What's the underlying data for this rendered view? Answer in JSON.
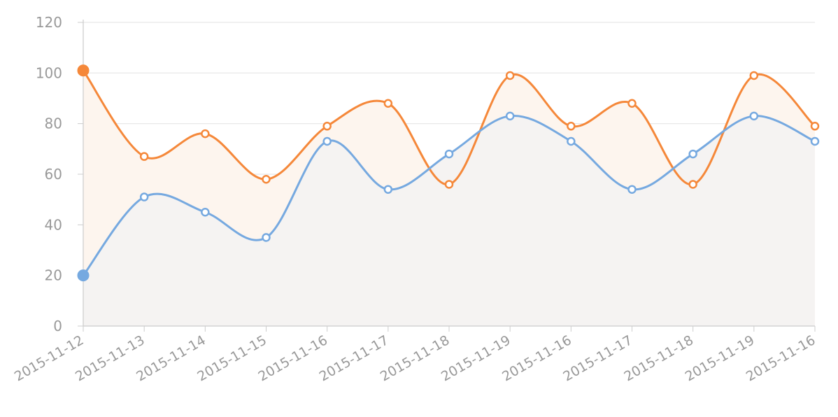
{
  "chart_data": {
    "type": "area",
    "categories": [
      "2015-11-12",
      "2015-11-13",
      "2015-11-14",
      "2015-11-15",
      "2015-11-16",
      "2015-11-17",
      "2015-11-18",
      "2015-11-19",
      "2015-11-16",
      "2015-11-17",
      "2015-11-18",
      "2015-11-19",
      "2015-11-16"
    ],
    "series": [
      {
        "color": "#f5883a",
        "fill": "#fdf5ee",
        "values": [
          101,
          67,
          76,
          58,
          79,
          88,
          56,
          99,
          79,
          88,
          56,
          99,
          79
        ]
      },
      {
        "color": "#76a9e0",
        "fill": "#f5f3f2",
        "values": [
          20,
          51,
          45,
          35,
          73,
          54,
          68,
          83,
          73,
          54,
          68,
          83,
          73
        ]
      }
    ],
    "y_ticks": [
      0,
      20,
      40,
      60,
      80,
      100,
      120
    ],
    "ylim": [
      0,
      120
    ],
    "grid": true,
    "legend": "none",
    "axis_color": "#cccccc",
    "grid_color": "#e6e6e6",
    "label_color": "#999999"
  }
}
